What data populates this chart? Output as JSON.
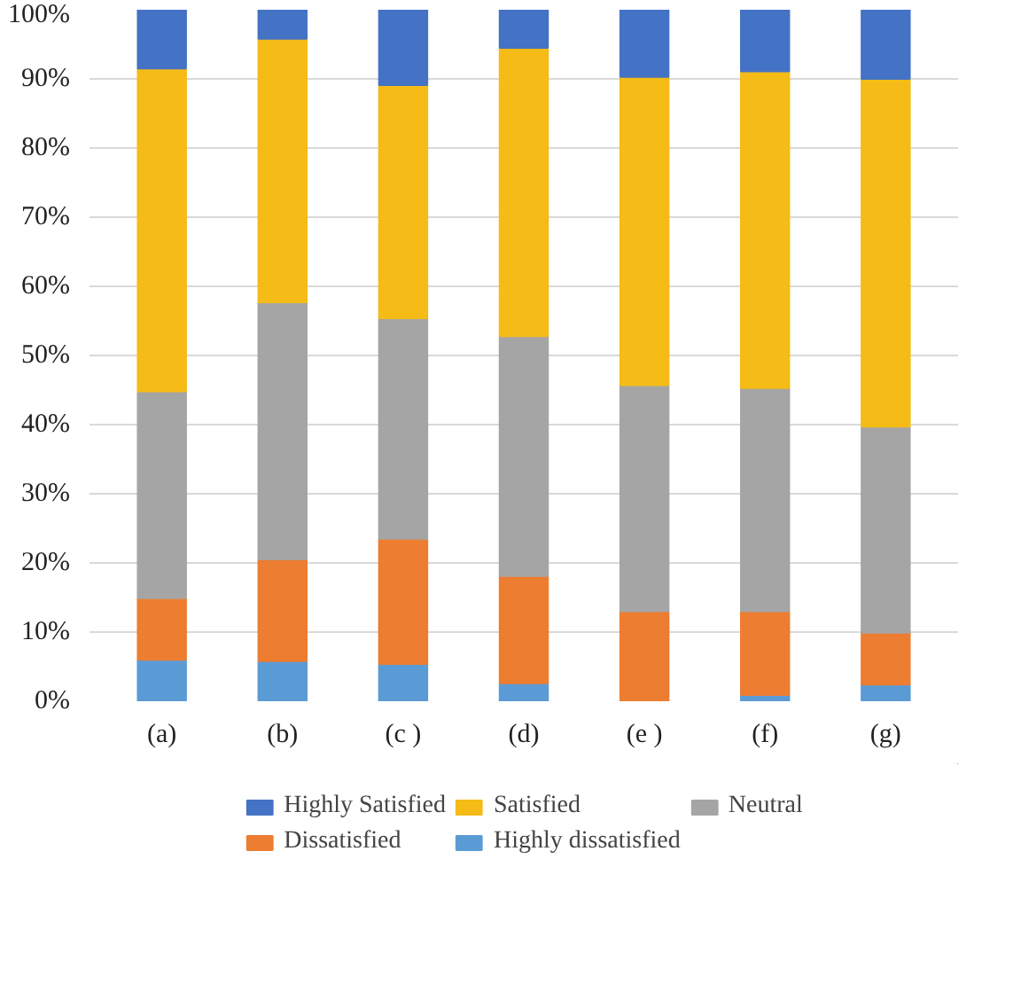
{
  "chart_data": {
    "type": "bar",
    "stacked": true,
    "categories": [
      "(a)",
      "(b)",
      "(c )",
      "(d)",
      "(e )",
      "(f)",
      "(g)"
    ],
    "series": [
      {
        "name": "Highly dissatisfied",
        "color": "#5b9bd5",
        "values": [
          6.0,
          5.8,
          5.4,
          2.6,
          0,
          0.9,
          2.4
        ]
      },
      {
        "name": "Dissatisfied",
        "color": "#ed7d31",
        "values": [
          8.9,
          14.7,
          18.1,
          15.5,
          13.0,
          12.1,
          7.5
        ]
      },
      {
        "name": "Neutral",
        "color": "#a5a5a5",
        "values": [
          29.9,
          37.2,
          31.9,
          34.7,
          32.7,
          32.3,
          29.8
        ]
      },
      {
        "name": "Satisfied",
        "color": "#f5bb17",
        "values": [
          46.7,
          38.1,
          33.7,
          41.7,
          44.6,
          45.8,
          50.3
        ]
      },
      {
        "name": "Highly Satisfied",
        "color": "#4472c4",
        "values": [
          8.5,
          4.2,
          10.9,
          5.5,
          9.7,
          8.9,
          10.0
        ]
      }
    ],
    "ylim": [
      0,
      100
    ],
    "yticks": [
      {
        "value": 0,
        "label": "0%"
      },
      {
        "value": 10,
        "label": "10%"
      },
      {
        "value": 20,
        "label": "20%"
      },
      {
        "value": 30,
        "label": "30%"
      },
      {
        "value": 40,
        "label": "40%"
      },
      {
        "value": 50,
        "label": "50%"
      },
      {
        "value": 60,
        "label": "60%"
      },
      {
        "value": 70,
        "label": "70%"
      },
      {
        "value": 80,
        "label": "80%"
      },
      {
        "value": 90,
        "label": "90%"
      },
      {
        "value": 100,
        "label": "100%"
      }
    ],
    "grid": "y",
    "legend": "bottom"
  }
}
